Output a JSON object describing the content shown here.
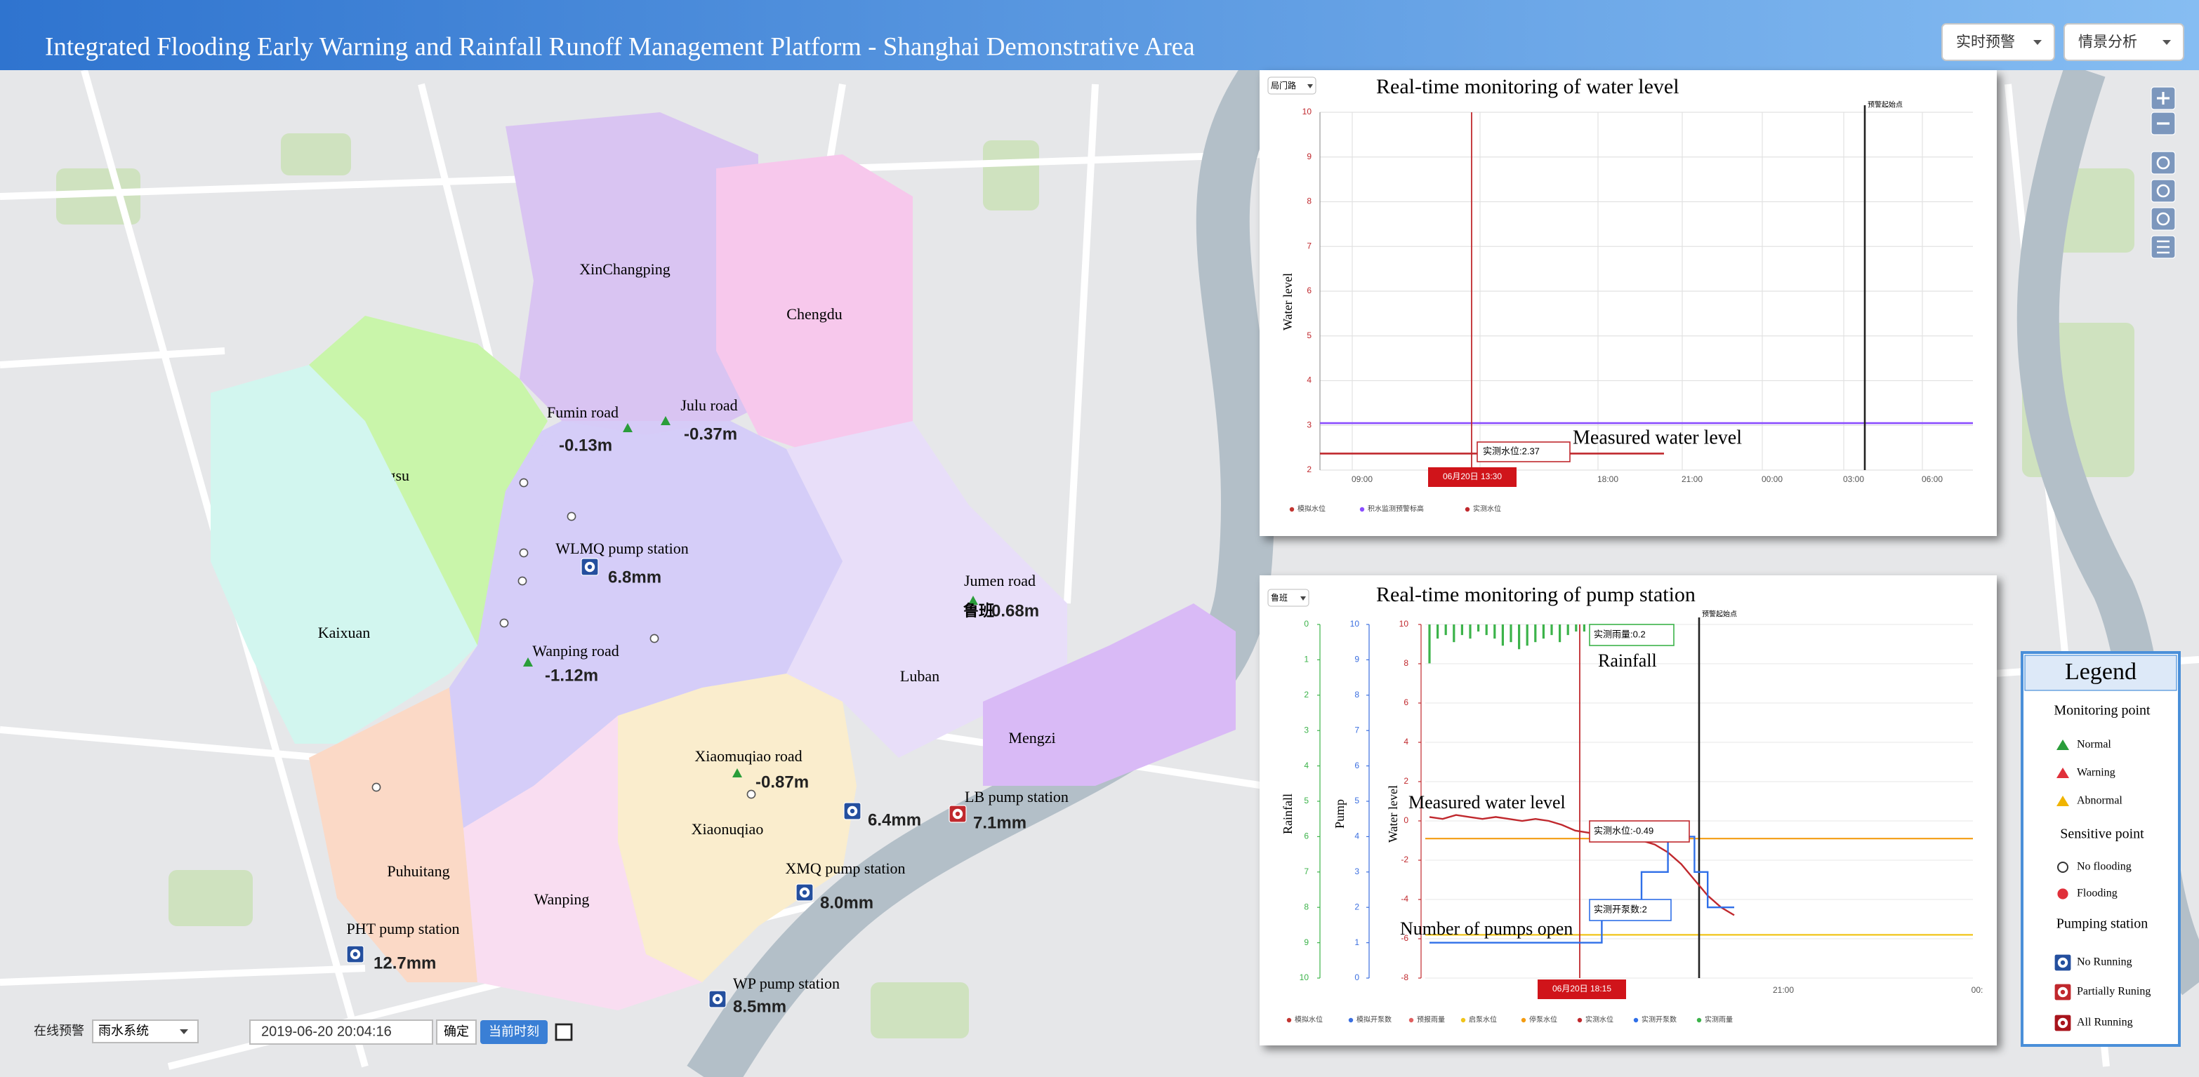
{
  "header": {
    "title": "Integrated Flooding Early Warning and Rainfall Runoff Management Platform - Shanghai Demonstrative Area",
    "menus": [
      "实时预警",
      "情景分析"
    ]
  },
  "map": {
    "districts": [
      "XinChangping",
      "Chengdu",
      "Jiangsu",
      "Kaixuan",
      "Luban",
      "Mengzi",
      "Xiaonuqiao",
      "Puhuitang",
      "Wanping"
    ],
    "monitoring_points": [
      {
        "name": "Fumin road",
        "value": "-0.13m"
      },
      {
        "name": "Julu road",
        "value": "-0.37m"
      },
      {
        "name": "Jumen road",
        "tag": "鲁班",
        "value": "0.68m"
      },
      {
        "name": "Wanping road",
        "value": "-1.12m"
      },
      {
        "name": "Xiaomuqiao road",
        "value": "-0.87m"
      }
    ],
    "pump_stations": [
      {
        "name": "WLMQ pump station",
        "value": "6.8mm"
      },
      {
        "value": "6.4mm"
      },
      {
        "name": "LB pump station",
        "value": "7.1mm"
      },
      {
        "name": "XMQ pump station",
        "value": "8.0mm"
      },
      {
        "name": "PHT pump station",
        "value": "12.7mm"
      },
      {
        "name": "WP pump station",
        "value": "8.5mm"
      }
    ]
  },
  "controls": {
    "mode": "在线预警",
    "system": "雨水系统",
    "datetime": "2019-06-20 20:04:16",
    "confirm": "确定",
    "now": "当前时刻"
  },
  "water_level_panel": {
    "selector": "局门路",
    "title": "Real-time monitoring of water level",
    "y_label": "Water level",
    "ylim": [
      2,
      10
    ],
    "yticks": [
      2,
      3,
      4,
      5,
      6,
      7,
      8,
      9,
      10
    ],
    "xticks": [
      "09:00",
      "5:00",
      "18:00",
      "21:00",
      "00:00",
      "03:00",
      "06:00"
    ],
    "warning_start": "预警起始点",
    "tooltip": "实测水位:2.37",
    "time_tag": "06月20日 13:30",
    "annotation": "Measured water level",
    "measured_level": 2.37,
    "warning_level": 3.05,
    "legend": [
      {
        "name": "模拟水位",
        "color": "#c23531"
      },
      {
        "name": "积水监测预警标高",
        "color": "#8a4dff"
      },
      {
        "name": "实测水位",
        "color": "#c0282d"
      }
    ]
  },
  "pump_panel": {
    "selector": "鲁班",
    "title": "Real-time monitoring of pump station",
    "rainfall_axis": {
      "label": "Rainfall",
      "ylim": [
        0,
        10
      ],
      "ticks": [
        0,
        1,
        2,
        3,
        4,
        5,
        6,
        7,
        8,
        9,
        10
      ]
    },
    "pump_axis": {
      "label": "Pump",
      "ylim": [
        0,
        10
      ],
      "ticks": [
        10,
        9,
        8,
        7,
        6,
        5,
        4,
        3,
        2,
        1,
        0
      ]
    },
    "level_axis": {
      "label": "Water level",
      "ylim": [
        -8,
        10
      ],
      "ticks": [
        10,
        8,
        6,
        4,
        2,
        0,
        -2,
        -4,
        -6,
        -8
      ]
    },
    "rainfall_tooltip": "实测雨量:0.2",
    "rainfall_annotation": "Rainfall",
    "level_annotation": "Measured water level",
    "level_tooltip": "实测水位:-0.49",
    "pump_tooltip": "实测开泵数:2",
    "pump_annotation": "Number of pumps open",
    "time_tag": "06月20日 18:15",
    "xticks": [
      "21:00",
      "00:"
    ],
    "warning_start": "预警起始点",
    "stop_level": -0.9,
    "start_level": -5.8,
    "rainfall": [
      1.1,
      0.4,
      0.3,
      0.5,
      0.3,
      0.4,
      0.2,
      0.3,
      0.4,
      0.6,
      0.5,
      0.7,
      0.6,
      0.5,
      0.4,
      0.3,
      0.5,
      0.3,
      0.2,
      0.2
    ],
    "measured_level": [
      0.2,
      0.1,
      0.3,
      0.2,
      0.1,
      0.2,
      0.1,
      0.0,
      0.1,
      0.0,
      -0.2,
      -0.49,
      -0.6,
      -0.7,
      -0.8,
      -0.9,
      -1.0,
      -1.2,
      -1.6,
      -2.2,
      -3.0,
      -3.8,
      -4.4,
      -4.8
    ],
    "measured_pumps": [
      1,
      1,
      1,
      1,
      1,
      1,
      1,
      1,
      1,
      1,
      1,
      1,
      1,
      2,
      2,
      2,
      3,
      3,
      4,
      4,
      3,
      2,
      2,
      2
    ],
    "legend": [
      {
        "name": "模拟水位",
        "color": "#c23531"
      },
      {
        "name": "模拟开泵数",
        "color": "#3b6fe0"
      },
      {
        "name": "预报雨量",
        "color": "#e06060"
      },
      {
        "name": "启泵水位",
        "color": "#f0c419"
      },
      {
        "name": "停泵水位",
        "color": "#f39c12"
      },
      {
        "name": "实测水位",
        "color": "#c0282d"
      },
      {
        "name": "实测开泵数",
        "color": "#2f6fe8"
      },
      {
        "name": "实测雨量",
        "color": "#3cb34a"
      }
    ]
  },
  "legend": {
    "title": "Legend",
    "groups": [
      {
        "name": "Monitoring point",
        "items": [
          "Normal",
          "Warning",
          "Abnormal"
        ]
      },
      {
        "name": "Sensitive point",
        "items": [
          "No flooding",
          "Flooding"
        ]
      },
      {
        "name": "Pumping station",
        "items": [
          "No Running",
          "Partially Runing",
          "All Running"
        ]
      }
    ]
  }
}
